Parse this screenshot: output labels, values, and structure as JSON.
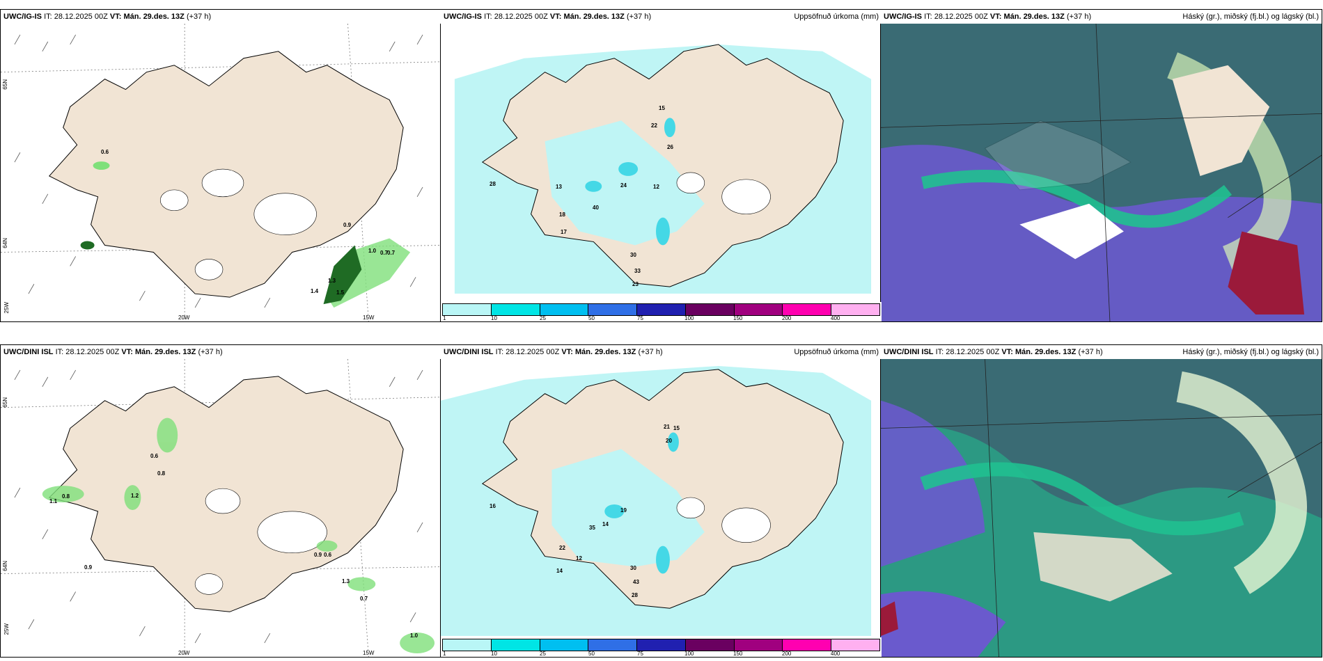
{
  "rows": [
    {
      "model": "UWC/IG-IS",
      "it_label": "IT:",
      "it_value": "28.12.2025 00Z",
      "vt_label": "VT:",
      "vt_value": "Mán. 29.des. 13Z",
      "lead": "(+37 h)",
      "wind_labels": [
        "0.6",
        "0.9",
        "1.0",
        "0.7",
        "0.7",
        "1.4",
        "1.5",
        "1.3"
      ],
      "precip_labels": [
        "28",
        "13",
        "18",
        "40",
        "24",
        "12",
        "30",
        "33",
        "23",
        "15",
        "22",
        "26",
        "17"
      ],
      "lat_labels": [
        "65N",
        "64N"
      ],
      "lon_labels": [
        "25W",
        "20W",
        "15W"
      ]
    },
    {
      "model": "UWC/DINI ISL",
      "it_label": "IT:",
      "it_value": "28.12.2025 00Z",
      "vt_label": "VT:",
      "vt_value": "Mán. 29.des. 13Z",
      "lead": "(+37 h)",
      "wind_labels": [
        "0.6",
        "0.8",
        "1.1",
        "0.8",
        "1.2",
        "0.9",
        "0.9",
        "0.6",
        "1.3",
        "0.7",
        "1.0"
      ],
      "precip_labels": [
        "16",
        "35",
        "14",
        "19",
        "22",
        "12",
        "14",
        "30",
        "43",
        "28",
        "21",
        "15",
        "20"
      ],
      "lat_labels": [
        "65N",
        "64N"
      ],
      "lon_labels": [
        "25W",
        "20W",
        "15W"
      ]
    }
  ],
  "precip_title": "Uppsöfnuð úrkoma (mm)",
  "cloud_title": "Háský (gr.), miðský (fj.bl.) og lágský (bl.)",
  "legend": {
    "ticks": [
      "1",
      "10",
      "25",
      "50",
      "75",
      "100",
      "150",
      "200",
      "400"
    ],
    "colors": [
      "#b9f6f6",
      "#00e5e5",
      "#00bff0",
      "#2f6fe6",
      "#2020b0",
      "#6a0060",
      "#a0007f",
      "#ff00b0",
      "#ffb0f0"
    ]
  },
  "colors": {
    "land": "#f1e4d4",
    "precip_light": "#bff5f5",
    "precip_mid": "#44d8e6",
    "cloud_dark": "#3a6b74",
    "cloud_green": "#20c090",
    "cloud_purple": "#6a5acd",
    "cloud_red": "#9b1a3a",
    "wind_green": "#7fe07a"
  }
}
